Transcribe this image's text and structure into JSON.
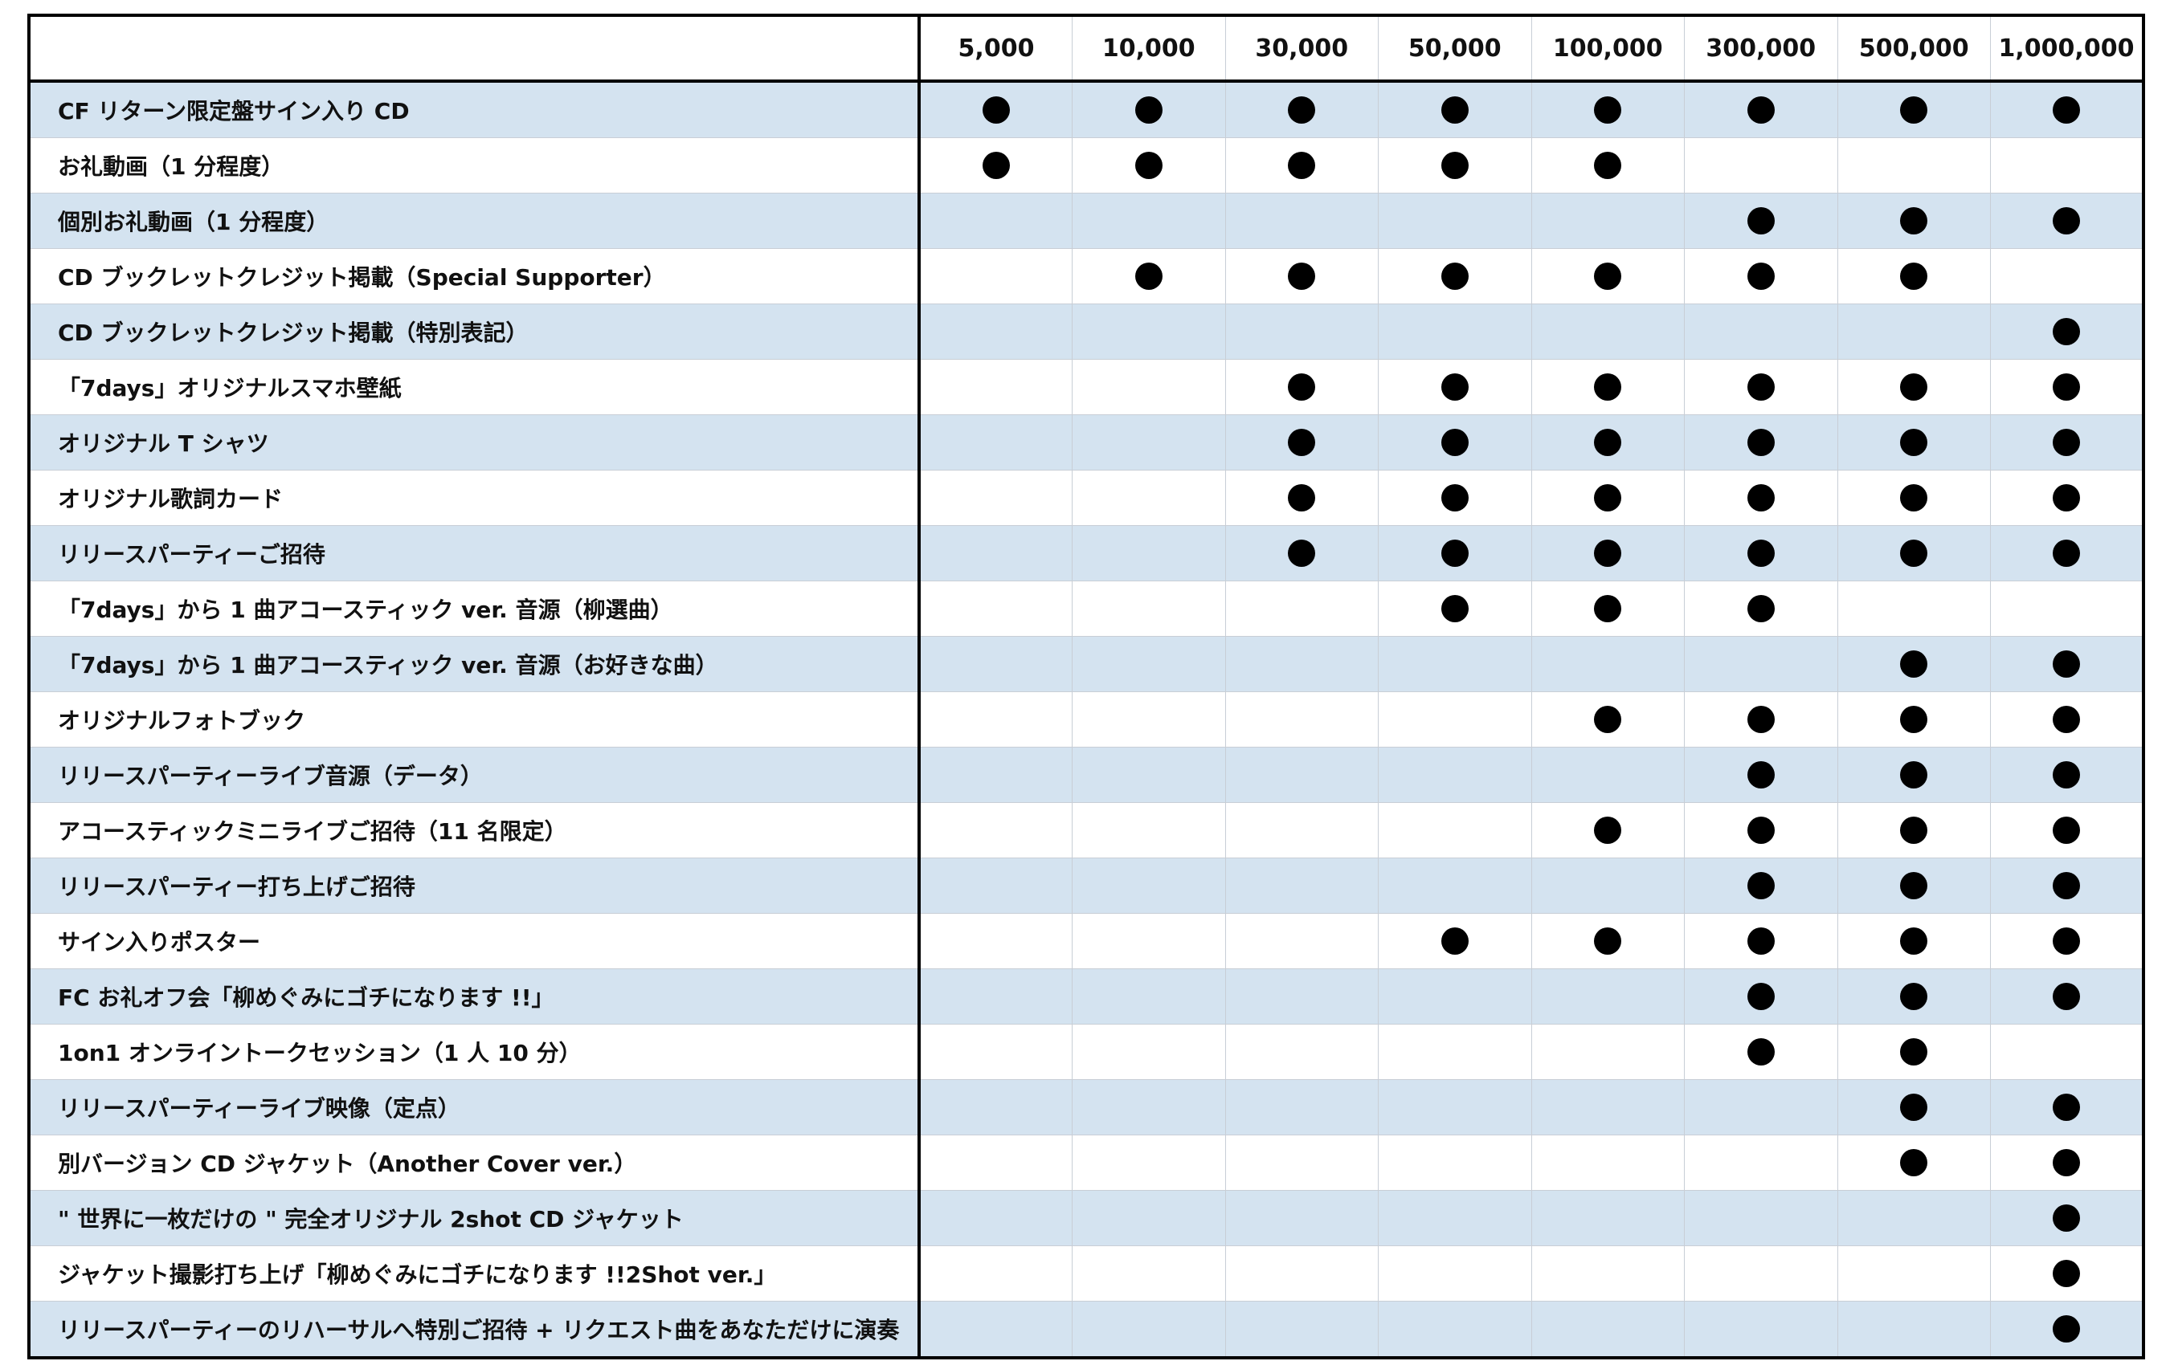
{
  "table": {
    "tiers": [
      "5,000",
      "10,000",
      "30,000",
      "50,000",
      "100,000",
      "300,000",
      "500,000",
      "1,000,000"
    ],
    "rows": [
      {
        "label": "CF リターン限定盤サイン入り CD",
        "marks": [
          true,
          true,
          true,
          true,
          true,
          true,
          true,
          true
        ]
      },
      {
        "label": "お礼動画（1 分程度）",
        "marks": [
          true,
          true,
          true,
          true,
          true,
          false,
          false,
          false
        ]
      },
      {
        "label": "個別お礼動画（1 分程度）",
        "marks": [
          false,
          false,
          false,
          false,
          false,
          true,
          true,
          true
        ]
      },
      {
        "label": "CD ブックレットクレジット掲載（Special Supporter）",
        "marks": [
          false,
          true,
          true,
          true,
          true,
          true,
          true,
          false
        ]
      },
      {
        "label": "CD ブックレットクレジット掲載（特別表記）",
        "marks": [
          false,
          false,
          false,
          false,
          false,
          false,
          false,
          true
        ]
      },
      {
        "label": "「7days」オリジナルスマホ壁紙",
        "marks": [
          false,
          false,
          true,
          true,
          true,
          true,
          true,
          true
        ]
      },
      {
        "label": "オリジナル T シャツ",
        "marks": [
          false,
          false,
          true,
          true,
          true,
          true,
          true,
          true
        ]
      },
      {
        "label": "オリジナル歌詞カード",
        "marks": [
          false,
          false,
          true,
          true,
          true,
          true,
          true,
          true
        ]
      },
      {
        "label": "リリースパーティーご招待",
        "marks": [
          false,
          false,
          true,
          true,
          true,
          true,
          true,
          true
        ]
      },
      {
        "label": "「7days」から 1 曲アコースティック ver. 音源（柳選曲）",
        "marks": [
          false,
          false,
          false,
          true,
          true,
          true,
          false,
          false
        ]
      },
      {
        "label": "「7days」から 1 曲アコースティック ver. 音源（お好きな曲）",
        "marks": [
          false,
          false,
          false,
          false,
          false,
          false,
          true,
          true
        ]
      },
      {
        "label": "オリジナルフォトブック",
        "marks": [
          false,
          false,
          false,
          false,
          true,
          true,
          true,
          true
        ]
      },
      {
        "label": "リリースパーティーライブ音源（データ）",
        "marks": [
          false,
          false,
          false,
          false,
          false,
          true,
          true,
          true
        ]
      },
      {
        "label": "アコースティックミニライブご招待（11 名限定）",
        "marks": [
          false,
          false,
          false,
          false,
          true,
          true,
          true,
          true
        ]
      },
      {
        "label": "リリースパーティー打ち上げご招待",
        "marks": [
          false,
          false,
          false,
          false,
          false,
          true,
          true,
          true
        ]
      },
      {
        "label": "サイン入りポスター",
        "marks": [
          false,
          false,
          false,
          true,
          true,
          true,
          true,
          true
        ]
      },
      {
        "label": "FC お礼オフ会「柳めぐみにゴチになります !!」",
        "marks": [
          false,
          false,
          false,
          false,
          false,
          true,
          true,
          true
        ]
      },
      {
        "label": "1on1 オンライントークセッション（1 人 10 分）",
        "marks": [
          false,
          false,
          false,
          false,
          false,
          true,
          true,
          false
        ]
      },
      {
        "label": "リリースパーティーライブ映像（定点）",
        "marks": [
          false,
          false,
          false,
          false,
          false,
          false,
          true,
          true
        ]
      },
      {
        "label": "別バージョン CD ジャケット（Another Cover ver.）",
        "marks": [
          false,
          false,
          false,
          false,
          false,
          false,
          true,
          true
        ]
      },
      {
        "label": "\" 世界に一枚だけの \" 完全オリジナル 2shot CD ジャケット",
        "marks": [
          false,
          false,
          false,
          false,
          false,
          false,
          false,
          true
        ]
      },
      {
        "label": "ジャケット撮影打ち上げ「柳めぐみにゴチになります !!2Shot ver.」",
        "marks": [
          false,
          false,
          false,
          false,
          false,
          false,
          false,
          true
        ]
      },
      {
        "label": "リリースパーティーのリハーサルへ特別ご招待 + リクエスト曲をあなただけに演奏",
        "marks": [
          false,
          false,
          false,
          false,
          false,
          false,
          false,
          true
        ]
      }
    ]
  }
}
